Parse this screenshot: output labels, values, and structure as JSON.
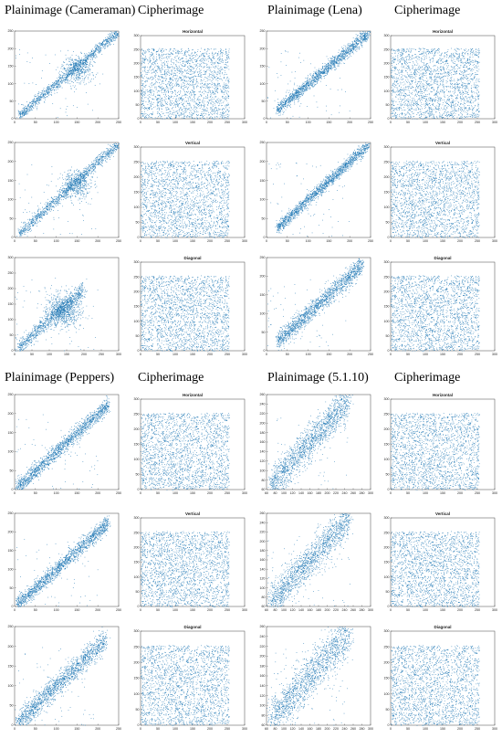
{
  "headers": {
    "cameraman_plain": "Plainimage (Cameraman)",
    "cameraman_cipher": "Cipherimage",
    "lena_plain": "Plainimage (Lena)",
    "lena_cipher": "Cipherimage",
    "peppers_plain": "Plainimage (Peppers)",
    "peppers_cipher": "Cipherimage",
    "img5110_plain": "Plainimage (5.1.10)",
    "img5110_cipher": "Cipherimage"
  },
  "colors": {
    "points": "#1f77b4",
    "axes": "#444444",
    "text": "#222222"
  },
  "chart_data": [
    {
      "type": "scatter",
      "image": "Cameraman",
      "kind": "plain",
      "direction": "Horizontal",
      "title": "",
      "xlim": [
        0,
        250
      ],
      "ylim": [
        0,
        250
      ],
      "xticks": [
        0,
        50,
        100,
        150,
        200,
        250
      ],
      "yticks": [
        0,
        50,
        100,
        150,
        200,
        250
      ],
      "distribution": "cluster-diagonal",
      "bands": [
        {
          "x": [
            10,
            250
          ],
          "spread": 8,
          "weight": 0.75
        }
      ],
      "cluster": {
        "cx": 150,
        "cy": 140,
        "r": 20,
        "weight": 0.25
      }
    },
    {
      "type": "scatter",
      "image": "Cameraman",
      "kind": "cipher",
      "direction": "Horizontal",
      "title": "Horizontal",
      "xlim": [
        0,
        300
      ],
      "ylim": [
        0,
        300
      ],
      "xticks": [
        0,
        50,
        100,
        150,
        200,
        250,
        300
      ],
      "yticks": [
        0,
        50,
        100,
        150,
        200,
        250,
        300
      ],
      "distribution": "uniform",
      "range": [
        0,
        255
      ]
    },
    {
      "type": "scatter",
      "image": "Lena",
      "kind": "plain",
      "direction": "Horizontal",
      "title": "",
      "xlim": [
        0,
        250
      ],
      "ylim": [
        0,
        250
      ],
      "xticks": [
        0,
        50,
        100,
        150,
        200,
        250
      ],
      "yticks": [
        0,
        50,
        100,
        150,
        200,
        250
      ],
      "distribution": "diagonal",
      "bands": [
        {
          "x": [
            25,
            245
          ],
          "spread": 9,
          "weight": 1
        }
      ]
    },
    {
      "type": "scatter",
      "image": "Lena",
      "kind": "cipher",
      "direction": "Horizontal",
      "title": "Horizontal",
      "xlim": [
        0,
        300
      ],
      "ylim": [
        0,
        300
      ],
      "xticks": [
        0,
        50,
        100,
        150,
        200,
        250,
        300
      ],
      "yticks": [
        0,
        50,
        100,
        150,
        200,
        250,
        300
      ],
      "distribution": "uniform",
      "range": [
        0,
        255
      ]
    },
    {
      "type": "scatter",
      "image": "Cameraman",
      "kind": "plain",
      "direction": "Vertical",
      "title": "",
      "xlim": [
        0,
        250
      ],
      "ylim": [
        0,
        250
      ],
      "xticks": [
        0,
        50,
        100,
        150,
        200,
        250
      ],
      "yticks": [
        0,
        50,
        100,
        150,
        200,
        250
      ],
      "distribution": "cluster-diagonal",
      "bands": [
        {
          "x": [
            10,
            250
          ],
          "spread": 8,
          "weight": 0.75
        }
      ],
      "cluster": {
        "cx": 150,
        "cy": 140,
        "r": 18,
        "weight": 0.25
      }
    },
    {
      "type": "scatter",
      "image": "Cameraman",
      "kind": "cipher",
      "direction": "Vertical",
      "title": "Vertical",
      "xlim": [
        0,
        300
      ],
      "ylim": [
        0,
        300
      ],
      "xticks": [
        0,
        50,
        100,
        150,
        200,
        250,
        300
      ],
      "yticks": [
        0,
        50,
        100,
        150,
        200,
        250,
        300
      ],
      "distribution": "uniform",
      "range": [
        0,
        255
      ]
    },
    {
      "type": "scatter",
      "image": "Lena",
      "kind": "plain",
      "direction": "Vertical",
      "title": "",
      "xlim": [
        0,
        250
      ],
      "ylim": [
        0,
        250
      ],
      "xticks": [
        0,
        50,
        100,
        150,
        200,
        250
      ],
      "yticks": [
        0,
        50,
        100,
        150,
        200,
        250
      ],
      "distribution": "diagonal",
      "bands": [
        {
          "x": [
            25,
            245
          ],
          "spread": 8,
          "weight": 1
        }
      ]
    },
    {
      "type": "scatter",
      "image": "Lena",
      "kind": "cipher",
      "direction": "Vertical",
      "title": "Vertical",
      "xlim": [
        0,
        300
      ],
      "ylim": [
        0,
        300
      ],
      "xticks": [
        0,
        50,
        100,
        150,
        200,
        250,
        300
      ],
      "yticks": [
        0,
        50,
        100,
        150,
        200,
        250,
        300
      ],
      "distribution": "uniform",
      "range": [
        0,
        255
      ]
    },
    {
      "type": "scatter",
      "image": "Cameraman",
      "kind": "plain",
      "direction": "Diagonal",
      "title": "",
      "xlim": [
        0,
        300
      ],
      "ylim": [
        0,
        300
      ],
      "xticks": [
        0,
        50,
        100,
        150,
        200,
        250,
        300
      ],
      "yticks": [
        0,
        50,
        100,
        150,
        200,
        250,
        300
      ],
      "distribution": "cluster-diagonal",
      "bands": [
        {
          "x": [
            10,
            200
          ],
          "spread": 12,
          "weight": 0.55
        }
      ],
      "cluster": {
        "cx": 140,
        "cy": 130,
        "r": 25,
        "weight": 0.45
      }
    },
    {
      "type": "scatter",
      "image": "Cameraman",
      "kind": "cipher",
      "direction": "Diagonal",
      "title": "Diagonal",
      "xlim": [
        0,
        300
      ],
      "ylim": [
        0,
        300
      ],
      "xticks": [
        0,
        50,
        100,
        150,
        200,
        250,
        300
      ],
      "yticks": [
        0,
        50,
        100,
        150,
        200,
        250,
        300
      ],
      "distribution": "uniform",
      "range": [
        0,
        255
      ]
    },
    {
      "type": "scatter",
      "image": "Lena",
      "kind": "plain",
      "direction": "Diagonal",
      "title": "",
      "xlim": [
        0,
        250
      ],
      "ylim": [
        0,
        250
      ],
      "xticks": [
        0,
        50,
        100,
        150,
        200,
        250
      ],
      "yticks": [
        0,
        50,
        100,
        150,
        200,
        250
      ],
      "distribution": "diagonal",
      "bands": [
        {
          "x": [
            25,
            230
          ],
          "spread": 12,
          "weight": 1
        }
      ]
    },
    {
      "type": "scatter",
      "image": "Lena",
      "kind": "cipher",
      "direction": "Diagonal",
      "title": "Diagonal",
      "xlim": [
        0,
        300
      ],
      "ylim": [
        0,
        300
      ],
      "xticks": [
        0,
        50,
        100,
        150,
        200,
        250,
        300
      ],
      "yticks": [
        0,
        50,
        100,
        150,
        200,
        250,
        300
      ],
      "distribution": "uniform",
      "range": [
        0,
        255
      ]
    },
    {
      "type": "scatter",
      "image": "Peppers",
      "kind": "plain",
      "direction": "Horizontal",
      "title": "",
      "xlim": [
        0,
        250
      ],
      "ylim": [
        0,
        250
      ],
      "xticks": [
        0,
        50,
        100,
        150,
        200,
        250
      ],
      "yticks": [
        0,
        50,
        100,
        150,
        200,
        250
      ],
      "distribution": "diagonal",
      "bands": [
        {
          "x": [
            5,
            225
          ],
          "spread": 10,
          "weight": 1
        }
      ]
    },
    {
      "type": "scatter",
      "image": "Peppers",
      "kind": "cipher",
      "direction": "Horizontal",
      "title": "Horizontal",
      "xlim": [
        0,
        300
      ],
      "ylim": [
        0,
        300
      ],
      "xticks": [
        0,
        50,
        100,
        150,
        200,
        250,
        300
      ],
      "yticks": [
        0,
        50,
        100,
        150,
        200,
        250,
        300
      ],
      "distribution": "uniform",
      "range": [
        0,
        255
      ]
    },
    {
      "type": "scatter",
      "image": "5.1.10",
      "kind": "plain",
      "direction": "Horizontal",
      "title": "",
      "xlim": [
        60,
        300
      ],
      "ylim": [
        60,
        260
      ],
      "xticks": [
        60,
        80,
        100,
        120,
        140,
        160,
        180,
        200,
        220,
        240,
        260,
        280,
        300
      ],
      "yticks": [
        60,
        80,
        100,
        120,
        140,
        160,
        180,
        200,
        220,
        240,
        260
      ],
      "distribution": "diagonal",
      "bands": [
        {
          "x": [
            70,
            250
          ],
          "spread": 18,
          "weight": 1
        }
      ]
    },
    {
      "type": "scatter",
      "image": "5.1.10",
      "kind": "cipher",
      "direction": "Horizontal",
      "title": "Horizontal",
      "xlim": [
        0,
        300
      ],
      "ylim": [
        0,
        300
      ],
      "xticks": [
        0,
        50,
        100,
        150,
        200,
        250,
        300
      ],
      "yticks": [
        0,
        50,
        100,
        150,
        200,
        250,
        300
      ],
      "distribution": "uniform",
      "range": [
        0,
        255
      ]
    },
    {
      "type": "scatter",
      "image": "Peppers",
      "kind": "plain",
      "direction": "Vertical",
      "title": "",
      "xlim": [
        0,
        250
      ],
      "ylim": [
        0,
        250
      ],
      "xticks": [
        0,
        50,
        100,
        150,
        200,
        250
      ],
      "yticks": [
        0,
        50,
        100,
        150,
        200,
        250
      ],
      "distribution": "diagonal",
      "bands": [
        {
          "x": [
            5,
            225
          ],
          "spread": 10,
          "weight": 1
        }
      ]
    },
    {
      "type": "scatter",
      "image": "Peppers",
      "kind": "cipher",
      "direction": "Vertical",
      "title": "Vertical",
      "xlim": [
        0,
        300
      ],
      "ylim": [
        0,
        300
      ],
      "xticks": [
        0,
        50,
        100,
        150,
        200,
        250,
        300
      ],
      "yticks": [
        0,
        50,
        100,
        150,
        200,
        250,
        300
      ],
      "distribution": "uniform",
      "range": [
        0,
        255
      ]
    },
    {
      "type": "scatter",
      "image": "5.1.10",
      "kind": "plain",
      "direction": "Vertical",
      "title": "",
      "xlim": [
        60,
        300
      ],
      "ylim": [
        60,
        260
      ],
      "xticks": [
        60,
        80,
        100,
        120,
        140,
        160,
        180,
        200,
        220,
        240,
        260,
        280,
        300
      ],
      "yticks": [
        60,
        80,
        100,
        120,
        140,
        160,
        180,
        200,
        220,
        240,
        260
      ],
      "distribution": "diagonal",
      "bands": [
        {
          "x": [
            70,
            250
          ],
          "spread": 18,
          "weight": 1
        }
      ]
    },
    {
      "type": "scatter",
      "image": "5.1.10",
      "kind": "cipher",
      "direction": "Vertical",
      "title": "Vertical",
      "xlim": [
        0,
        300
      ],
      "ylim": [
        0,
        300
      ],
      "xticks": [
        0,
        50,
        100,
        150,
        200,
        250,
        300
      ],
      "yticks": [
        0,
        50,
        100,
        150,
        200,
        250,
        300
      ],
      "distribution": "uniform",
      "range": [
        0,
        255
      ]
    },
    {
      "type": "scatter",
      "image": "Peppers",
      "kind": "plain",
      "direction": "Diagonal",
      "title": "",
      "xlim": [
        0,
        250
      ],
      "ylim": [
        0,
        250
      ],
      "xticks": [
        0,
        50,
        100,
        150,
        200,
        250
      ],
      "yticks": [
        0,
        50,
        100,
        150,
        200,
        250
      ],
      "distribution": "diagonal",
      "bands": [
        {
          "x": [
            5,
            220
          ],
          "spread": 14,
          "weight": 1
        }
      ]
    },
    {
      "type": "scatter",
      "image": "Peppers",
      "kind": "cipher",
      "direction": "Diagonal",
      "title": "Diagonal",
      "xlim": [
        0,
        300
      ],
      "ylim": [
        0,
        300
      ],
      "xticks": [
        0,
        50,
        100,
        150,
        200,
        250,
        300
      ],
      "yticks": [
        0,
        50,
        100,
        150,
        200,
        250,
        300
      ],
      "distribution": "uniform",
      "range": [
        0,
        255
      ]
    },
    {
      "type": "scatter",
      "image": "5.1.10",
      "kind": "plain",
      "direction": "Diagonal",
      "title": "",
      "xlim": [
        60,
        300
      ],
      "ylim": [
        60,
        260
      ],
      "xticks": [
        60,
        80,
        100,
        120,
        140,
        160,
        180,
        200,
        220,
        240,
        260,
        280,
        300
      ],
      "yticks": [
        60,
        80,
        100,
        120,
        140,
        160,
        180,
        200,
        220,
        240,
        260
      ],
      "distribution": "diagonal",
      "bands": [
        {
          "x": [
            70,
            250
          ],
          "spread": 22,
          "weight": 1
        }
      ]
    },
    {
      "type": "scatter",
      "image": "5.1.10",
      "kind": "cipher",
      "direction": "Diagonal",
      "title": "Diagonal",
      "xlim": [
        0,
        300
      ],
      "ylim": [
        0,
        300
      ],
      "xticks": [
        0,
        50,
        100,
        150,
        200,
        250,
        300
      ],
      "yticks": [
        0,
        50,
        100,
        150,
        200,
        250,
        300
      ],
      "distribution": "uniform",
      "range": [
        0,
        255
      ]
    }
  ]
}
